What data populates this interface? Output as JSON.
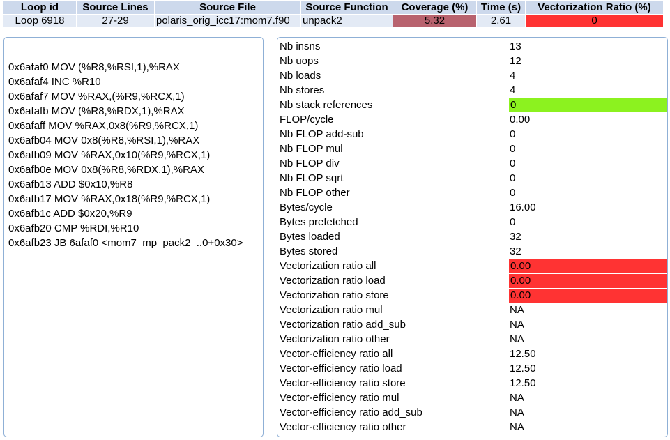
{
  "summary": {
    "headers": [
      "Loop id",
      "Source Lines",
      "Source File",
      "Source Function",
      "Coverage (%)",
      "Time (s)",
      "Vectorization Ratio (%)"
    ],
    "row": {
      "loop_id": "Loop 6918",
      "source_lines": "27-29",
      "source_file": "polaris_orig_icc17:mom7.f90",
      "source_function": "unpack2",
      "coverage": "5.32",
      "time": "2.61",
      "vectorization_ratio": "0"
    },
    "colors": {
      "coverage_bg": "#b8626e",
      "vectorization_bg": "#ff3333",
      "header_bg": "#cdd9ec",
      "cell_bg": "#e3eaf5"
    }
  },
  "assembly": [
    "0x6afaf0 MOV (%R8,%RSI,1),%RAX",
    "0x6afaf4 INC %R10",
    "0x6afaf7 MOV %RAX,(%R9,%RCX,1)",
    "0x6afafb MOV (%R8,%RDX,1),%RAX",
    "0x6afaff MOV %RAX,0x8(%R9,%RCX,1)",
    "0x6afb04 MOV 0x8(%R8,%RSI,1),%RAX",
    "0x6afb09 MOV %RAX,0x10(%R9,%RCX,1)",
    "0x6afb0e MOV 0x8(%R8,%RDX,1),%RAX",
    "0x6afb13 ADD $0x10,%R8",
    "0x6afb17 MOV %RAX,0x18(%R9,%RCX,1)",
    "0x6afb1c ADD $0x20,%R9",
    "0x6afb20 CMP %RDI,%R10",
    "0x6afb23 JB 6afaf0 <mom7_mp_pack2_..0+0x30>"
  ],
  "metrics": [
    {
      "name": "Nb insns",
      "value": "13"
    },
    {
      "name": "Nb uops",
      "value": "12"
    },
    {
      "name": "Nb loads",
      "value": "4"
    },
    {
      "name": "Nb stores",
      "value": "4"
    },
    {
      "name": "Nb stack references",
      "value": "0",
      "highlight": "#8cf21f"
    },
    {
      "name": "FLOP/cycle",
      "value": "0.00"
    },
    {
      "name": "Nb FLOP add-sub",
      "value": "0"
    },
    {
      "name": "Nb FLOP mul",
      "value": "0"
    },
    {
      "name": "Nb FLOP div",
      "value": "0"
    },
    {
      "name": "Nb FLOP sqrt",
      "value": "0"
    },
    {
      "name": "Nb FLOP other",
      "value": "0"
    },
    {
      "name": "Bytes/cycle",
      "value": "16.00"
    },
    {
      "name": "Bytes prefetched",
      "value": "0"
    },
    {
      "name": "Bytes loaded",
      "value": "32"
    },
    {
      "name": "Bytes stored",
      "value": "32"
    },
    {
      "name": "Vectorization ratio all",
      "value": "0.00",
      "highlight": "#ff3333"
    },
    {
      "name": "Vectorization ratio load",
      "value": "0.00",
      "highlight": "#ff3333"
    },
    {
      "name": "Vectorization ratio store",
      "value": "0.00",
      "highlight": "#ff3333"
    },
    {
      "name": "Vectorization ratio mul",
      "value": "NA"
    },
    {
      "name": "Vectorization ratio add_sub",
      "value": "NA"
    },
    {
      "name": "Vectorization ratio other",
      "value": "NA"
    },
    {
      "name": "Vector-efficiency ratio all",
      "value": "12.50"
    },
    {
      "name": "Vector-efficiency ratio load",
      "value": "12.50"
    },
    {
      "name": "Vector-efficiency ratio store",
      "value": "12.50"
    },
    {
      "name": "Vector-efficiency ratio mul",
      "value": "NA"
    },
    {
      "name": "Vector-efficiency ratio add_sub",
      "value": "NA"
    },
    {
      "name": "Vector-efficiency ratio other",
      "value": "NA"
    }
  ]
}
